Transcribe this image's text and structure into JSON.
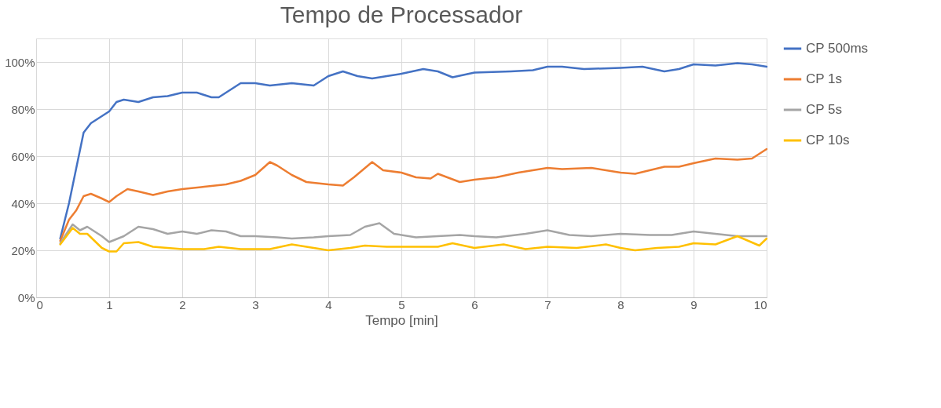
{
  "chart_data": {
    "type": "line",
    "title": "Tempo de Processador",
    "xlabel": "Tempo [min]",
    "xlim": [
      0,
      10
    ],
    "xticks": [
      0,
      1,
      2,
      3,
      4,
      5,
      6,
      7,
      8,
      9,
      10
    ],
    "ylim": [
      0,
      110
    ],
    "yticks": [
      {
        "value": 0,
        "label": "0%"
      },
      {
        "value": 20,
        "label": "20%"
      },
      {
        "value": 40,
        "label": "40%"
      },
      {
        "value": 60,
        "label": "60%"
      },
      {
        "value": 80,
        "label": "80%"
      },
      {
        "value": 100,
        "label": "100%"
      }
    ],
    "grid": true,
    "legend": "right",
    "line_style": "solid",
    "series": [
      {
        "name": "CP 500ms",
        "color": "#4472c4",
        "x": [
          0.33,
          0.45,
          0.55,
          0.65,
          0.75,
          0.85,
          0.95,
          1.0,
          1.1,
          1.2,
          1.4,
          1.6,
          1.8,
          2.0,
          2.2,
          2.4,
          2.5,
          2.6,
          2.8,
          3.0,
          3.2,
          3.5,
          3.8,
          4.0,
          4.2,
          4.4,
          4.6,
          4.8,
          5.0,
          5.3,
          5.5,
          5.7,
          6.0,
          6.5,
          6.8,
          7.0,
          7.2,
          7.5,
          8.0,
          8.3,
          8.6,
          8.8,
          9.0,
          9.3,
          9.6,
          9.8,
          10.0
        ],
        "values": [
          25,
          40,
          55,
          70,
          74,
          76,
          78,
          79,
          83,
          84,
          83,
          85,
          85.5,
          87,
          87,
          85,
          85,
          87,
          91,
          91,
          90,
          91,
          90,
          94,
          96,
          94,
          93,
          94,
          95,
          97,
          96,
          93.5,
          95.5,
          96,
          96.5,
          98,
          98,
          97,
          97.5,
          98,
          96,
          97,
          99,
          98.5,
          99.5,
          99,
          98
        ]
      },
      {
        "name": "CP 1s",
        "color": "#ed7d31",
        "x": [
          0.33,
          0.45,
          0.55,
          0.65,
          0.75,
          0.9,
          1.0,
          1.1,
          1.25,
          1.4,
          1.6,
          1.8,
          2.0,
          2.3,
          2.6,
          2.8,
          3.0,
          3.2,
          3.3,
          3.5,
          3.7,
          4.0,
          4.2,
          4.35,
          4.6,
          4.75,
          5.0,
          5.2,
          5.4,
          5.5,
          5.8,
          6.0,
          6.3,
          6.6,
          7.0,
          7.2,
          7.6,
          8.0,
          8.2,
          8.4,
          8.6,
          8.8,
          9.0,
          9.3,
          9.6,
          9.8,
          10.0
        ],
        "values": [
          24,
          33,
          37,
          43,
          44,
          42,
          40.5,
          43,
          46,
          45,
          43.5,
          45,
          46,
          47,
          48,
          49.5,
          52,
          57.5,
          56,
          52,
          49,
          48,
          47.5,
          51,
          57.5,
          54,
          53,
          51,
          50.5,
          52.5,
          49,
          50,
          51,
          53,
          55,
          54.5,
          55,
          53,
          52.5,
          54,
          55.5,
          55.5,
          57,
          59,
          58.5,
          59,
          63
        ]
      },
      {
        "name": "CP 5s",
        "color": "#a5a5a5",
        "x": [
          0.33,
          0.5,
          0.6,
          0.7,
          0.9,
          1.0,
          1.2,
          1.4,
          1.6,
          1.8,
          2.0,
          2.2,
          2.4,
          2.6,
          2.8,
          3.0,
          3.3,
          3.5,
          3.8,
          4.0,
          4.3,
          4.5,
          4.7,
          4.9,
          5.2,
          5.5,
          5.8,
          6.0,
          6.3,
          6.7,
          7.0,
          7.3,
          7.6,
          8.0,
          8.4,
          8.7,
          9.0,
          9.3,
          9.6,
          10.0
        ],
        "values": [
          23,
          31,
          28.5,
          30,
          26,
          23.5,
          26,
          30,
          29,
          27,
          28,
          27,
          28.5,
          28,
          26,
          26,
          25.5,
          25,
          25.5,
          26,
          26.5,
          30,
          31.5,
          27,
          25.5,
          26,
          26.5,
          26,
          25.5,
          27,
          28.5,
          26.5,
          26,
          27,
          26.5,
          26.5,
          28,
          27,
          26,
          26
        ]
      },
      {
        "name": "CP 10s",
        "color": "#ffc000",
        "x": [
          0.33,
          0.5,
          0.6,
          0.7,
          0.9,
          1.0,
          1.1,
          1.2,
          1.4,
          1.6,
          2.0,
          2.3,
          2.5,
          2.8,
          3.2,
          3.5,
          3.7,
          4.0,
          4.3,
          4.5,
          4.8,
          5.2,
          5.5,
          5.7,
          6.0,
          6.4,
          6.7,
          7.0,
          7.4,
          7.8,
          8.0,
          8.2,
          8.5,
          8.8,
          9.0,
          9.3,
          9.6,
          9.9,
          10.0
        ],
        "values": [
          22.5,
          29.5,
          27,
          27,
          21,
          19.5,
          19.5,
          23,
          23.5,
          21.5,
          20.5,
          20.5,
          21.5,
          20.5,
          20.5,
          22.5,
          21.5,
          20,
          21,
          22,
          21.5,
          21.5,
          21.5,
          23,
          21,
          22.5,
          20.5,
          21.5,
          21,
          22.5,
          21,
          20,
          21,
          21.5,
          23,
          22.5,
          26,
          22,
          25
        ]
      }
    ]
  }
}
